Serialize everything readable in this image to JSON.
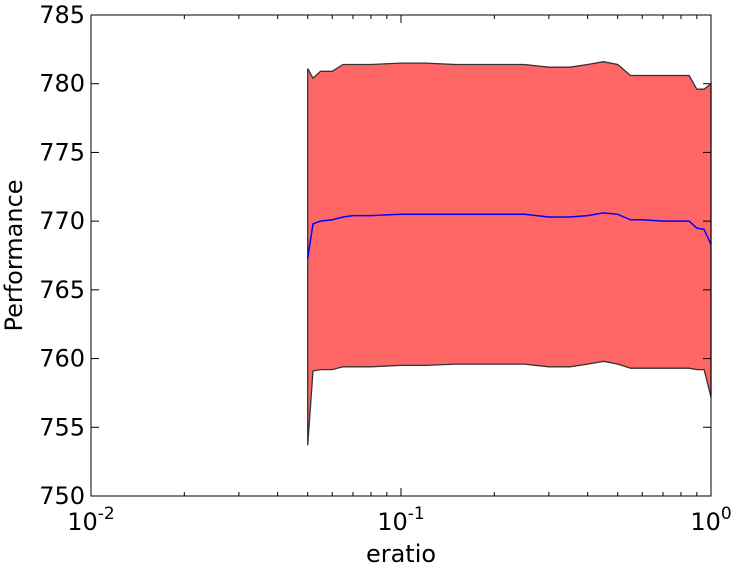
{
  "chart_data": {
    "type": "area",
    "xlabel": "eratio",
    "ylabel": "Performance",
    "xscale": "log",
    "xlim": [
      0.01,
      1
    ],
    "ylim": [
      750,
      785
    ],
    "grid": false,
    "x_ticks": [
      {
        "value": 0.01,
        "base": "10",
        "exp": "-2"
      },
      {
        "value": 0.1,
        "base": "10",
        "exp": "-1"
      },
      {
        "value": 1,
        "base": "10",
        "exp": "0"
      }
    ],
    "y_ticks": [
      750,
      755,
      760,
      765,
      770,
      775,
      780,
      785
    ],
    "colors": {
      "band_fill": "#ff6666",
      "band_edge": "#333333",
      "mean_line": "#0000ff"
    },
    "series": [
      {
        "x": [
          0.05,
          0.052,
          0.055,
          0.06,
          0.065,
          0.07,
          0.08,
          0.1,
          0.12,
          0.15,
          0.2,
          0.25,
          0.3,
          0.35,
          0.4,
          0.45,
          0.5,
          0.55,
          0.6,
          0.7,
          0.8,
          0.85,
          0.9,
          0.95,
          1.0
        ],
        "mean": [
          767.3,
          769.8,
          770.0,
          770.1,
          770.3,
          770.4,
          770.4,
          770.5,
          770.5,
          770.5,
          770.5,
          770.5,
          770.3,
          770.3,
          770.4,
          770.6,
          770.5,
          770.1,
          770.1,
          770.0,
          770.0,
          770.0,
          769.5,
          769.4,
          768.3
        ],
        "upper": [
          781.1,
          780.4,
          780.9,
          780.9,
          781.4,
          781.4,
          781.4,
          781.5,
          781.5,
          781.4,
          781.4,
          781.4,
          781.2,
          781.2,
          781.4,
          781.6,
          781.4,
          780.6,
          780.6,
          780.6,
          780.6,
          780.6,
          779.6,
          779.6,
          780.0
        ],
        "lower": [
          753.7,
          759.1,
          759.2,
          759.2,
          759.4,
          759.4,
          759.4,
          759.5,
          759.5,
          759.6,
          759.6,
          759.6,
          759.4,
          759.4,
          759.6,
          759.8,
          759.6,
          759.3,
          759.3,
          759.3,
          759.3,
          759.3,
          759.2,
          759.2,
          757.2
        ]
      }
    ]
  }
}
